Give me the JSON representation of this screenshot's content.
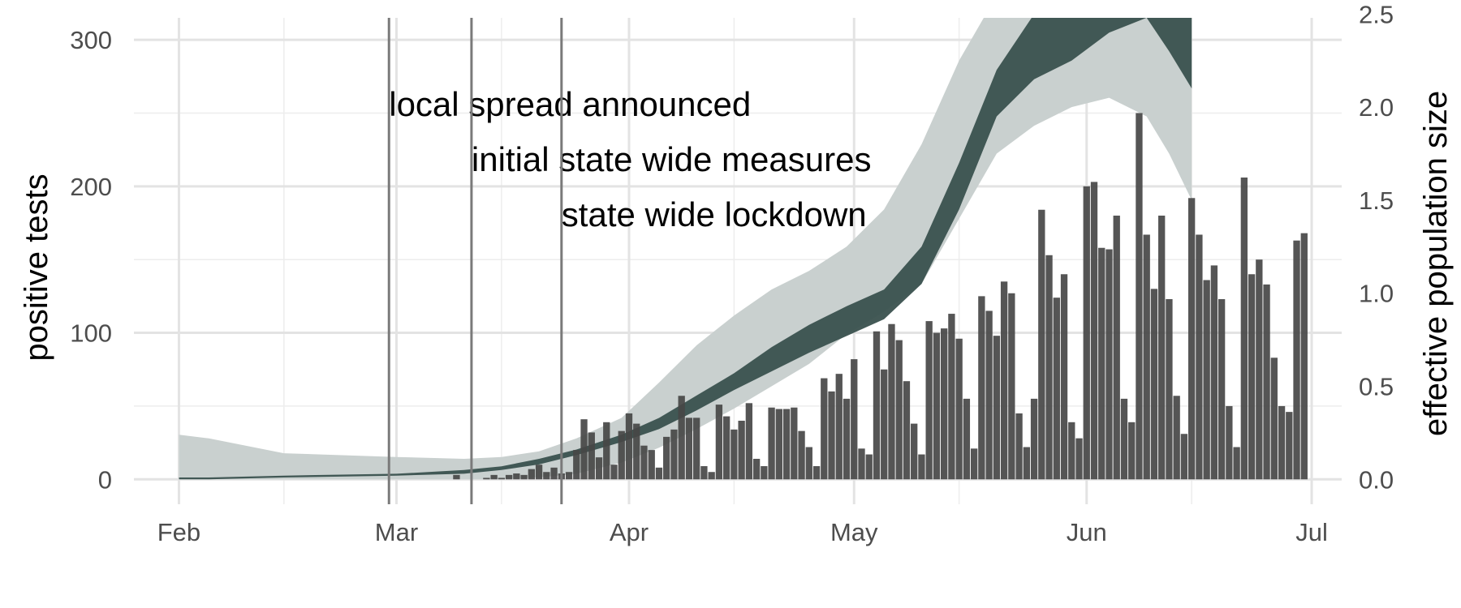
{
  "chart_data": {
    "type": "bar",
    "title": "",
    "xlabel": "",
    "ylabel": "positive tests",
    "y2label": "effective population size",
    "x_range": [
      "2020-01-26",
      "2020-07-05"
    ],
    "ylim": [
      -17,
      315
    ],
    "y2lim": [
      -0.1339,
      2.4796
    ],
    "grid": true,
    "x_ticks": [
      {
        "date": "2020-02-01",
        "label": "Feb"
      },
      {
        "date": "2020-03-01",
        "label": "Mar"
      },
      {
        "date": "2020-04-01",
        "label": "Apr"
      },
      {
        "date": "2020-05-01",
        "label": "May"
      },
      {
        "date": "2020-06-01",
        "label": "Jun"
      },
      {
        "date": "2020-07-01",
        "label": "Jul"
      }
    ],
    "x_minor_ticks": [
      "2020-02-15",
      "2020-03-15",
      "2020-04-15",
      "2020-05-15",
      "2020-06-15"
    ],
    "y_ticks": [
      {
        "value": 0,
        "label": "0"
      },
      {
        "value": 100,
        "label": "100"
      },
      {
        "value": 200,
        "label": "200"
      },
      {
        "value": 300,
        "label": "300"
      }
    ],
    "y_minor_ticks": [
      50,
      150,
      250
    ],
    "y2_ticks": [
      {
        "value": 0.0,
        "label": "0.0"
      },
      {
        "value": 0.5,
        "label": "0.5"
      },
      {
        "value": 1.0,
        "label": "1.0"
      },
      {
        "value": 1.5,
        "label": "1.5"
      },
      {
        "value": 2.0,
        "label": "2.0"
      },
      {
        "value": 2.5,
        "label": "2.5"
      }
    ],
    "events": [
      {
        "date": "2020-02-29",
        "label": "local spread announced"
      },
      {
        "date": "2020-03-11",
        "label": "initial state wide measures"
      },
      {
        "date": "2020-03-23",
        "label": "state wide lockdown"
      }
    ],
    "bars": {
      "name": "positive tests",
      "color": "#474747",
      "dates": [
        "2020-03-09",
        "2020-03-13",
        "2020-03-14",
        "2020-03-15",
        "2020-03-16",
        "2020-03-17",
        "2020-03-18",
        "2020-03-19",
        "2020-03-20",
        "2020-03-21",
        "2020-03-22",
        "2020-03-23",
        "2020-03-24",
        "2020-03-25",
        "2020-03-26",
        "2020-03-27",
        "2020-03-28",
        "2020-03-29",
        "2020-03-30",
        "2020-03-31",
        "2020-04-01",
        "2020-04-02",
        "2020-04-03",
        "2020-04-04",
        "2020-04-05",
        "2020-04-06",
        "2020-04-07",
        "2020-04-08",
        "2020-04-09",
        "2020-04-10",
        "2020-04-11",
        "2020-04-12",
        "2020-04-13",
        "2020-04-14",
        "2020-04-15",
        "2020-04-16",
        "2020-04-17",
        "2020-04-18",
        "2020-04-19",
        "2020-04-20",
        "2020-04-21",
        "2020-04-22",
        "2020-04-23",
        "2020-04-24",
        "2020-04-25",
        "2020-04-26",
        "2020-04-27",
        "2020-04-28",
        "2020-04-29",
        "2020-04-30",
        "2020-05-01",
        "2020-05-02",
        "2020-05-03",
        "2020-05-04",
        "2020-05-05",
        "2020-05-06",
        "2020-05-07",
        "2020-05-08",
        "2020-05-09",
        "2020-05-10",
        "2020-05-11",
        "2020-05-12",
        "2020-05-13",
        "2020-05-14",
        "2020-05-15",
        "2020-05-16",
        "2020-05-17",
        "2020-05-18",
        "2020-05-19",
        "2020-05-20",
        "2020-05-21",
        "2020-05-22",
        "2020-05-23",
        "2020-05-24",
        "2020-05-25",
        "2020-05-26",
        "2020-05-27",
        "2020-05-28",
        "2020-05-29",
        "2020-05-30",
        "2020-05-31",
        "2020-06-01",
        "2020-06-02",
        "2020-06-03",
        "2020-06-04",
        "2020-06-05",
        "2020-06-06",
        "2020-06-07",
        "2020-06-08",
        "2020-06-09",
        "2020-06-10",
        "2020-06-11",
        "2020-06-12",
        "2020-06-13",
        "2020-06-14",
        "2020-06-15",
        "2020-06-16",
        "2020-06-17",
        "2020-06-18",
        "2020-06-19",
        "2020-06-20",
        "2020-06-21",
        "2020-06-22",
        "2020-06-23",
        "2020-06-24",
        "2020-06-25",
        "2020-06-26",
        "2020-06-27",
        "2020-06-28",
        "2020-06-29",
        "2020-06-30"
      ],
      "values": [
        3,
        1,
        3,
        1,
        3,
        4,
        3,
        7,
        10,
        5,
        8,
        4,
        5,
        20,
        41,
        32,
        15,
        39,
        10,
        33,
        45,
        38,
        23,
        20,
        8,
        29,
        34,
        57,
        42,
        42,
        9,
        5,
        51,
        43,
        34,
        40,
        52,
        14,
        9,
        49,
        48,
        48,
        49,
        33,
        22,
        9,
        69,
        60,
        72,
        55,
        82,
        21,
        17,
        101,
        75,
        106,
        95,
        67,
        38,
        17,
        108,
        100,
        103,
        113,
        96,
        55,
        21,
        125,
        115,
        98,
        135,
        127,
        45,
        22,
        55,
        184,
        153,
        124,
        140,
        39,
        28,
        200,
        203,
        158,
        157,
        180,
        55,
        39,
        250,
        167,
        130,
        180,
        123,
        57,
        31,
        192,
        167,
        136,
        146,
        123,
        50,
        22,
        206,
        140,
        150,
        133,
        83,
        50,
        46,
        163,
        168
      ]
    },
    "bands": {
      "axis": "y2",
      "light_color": "#c9d0cf",
      "dark_color": "#3a514e",
      "dates": [
        "2020-02-01",
        "2020-02-05",
        "2020-02-15",
        "2020-03-01",
        "2020-03-10",
        "2020-03-15",
        "2020-03-20",
        "2020-03-25",
        "2020-03-31",
        "2020-04-05",
        "2020-04-10",
        "2020-04-15",
        "2020-04-20",
        "2020-04-25",
        "2020-04-30",
        "2020-05-05",
        "2020-05-10",
        "2020-05-15",
        "2020-05-20",
        "2020-05-25",
        "2020-05-30",
        "2020-06-04",
        "2020-06-09",
        "2020-06-12",
        "2020-06-15"
      ],
      "outer_low": [
        0,
        0,
        0,
        0,
        0,
        0,
        0.01,
        0.03,
        0.09,
        0.17,
        0.27,
        0.38,
        0.5,
        0.62,
        0.78,
        0.9,
        1.05,
        1.4,
        1.75,
        1.9,
        2.0,
        2.05,
        1.95,
        1.75,
        1.5
      ],
      "outer_high": [
        0.24,
        0.22,
        0.14,
        0.12,
        0.11,
        0.12,
        0.15,
        0.22,
        0.33,
        0.52,
        0.72,
        0.88,
        1.02,
        1.12,
        1.25,
        1.45,
        1.8,
        2.25,
        2.6,
        2.6,
        2.6,
        2.6,
        2.6,
        2.6,
        2.6
      ],
      "inner_low": [
        0,
        0,
        0.01,
        0.02,
        0.03,
        0.05,
        0.08,
        0.13,
        0.2,
        0.27,
        0.37,
        0.48,
        0.58,
        0.68,
        0.77,
        0.86,
        1.05,
        1.45,
        1.95,
        2.15,
        2.25,
        2.4,
        2.48,
        2.3,
        2.1
      ],
      "inner_high": [
        0.01,
        0.01,
        0.02,
        0.03,
        0.05,
        0.07,
        0.11,
        0.16,
        0.24,
        0.33,
        0.45,
        0.57,
        0.71,
        0.83,
        0.93,
        1.02,
        1.25,
        1.7,
        2.2,
        2.5,
        2.5,
        2.5,
        2.5,
        2.5,
        2.5
      ]
    }
  }
}
